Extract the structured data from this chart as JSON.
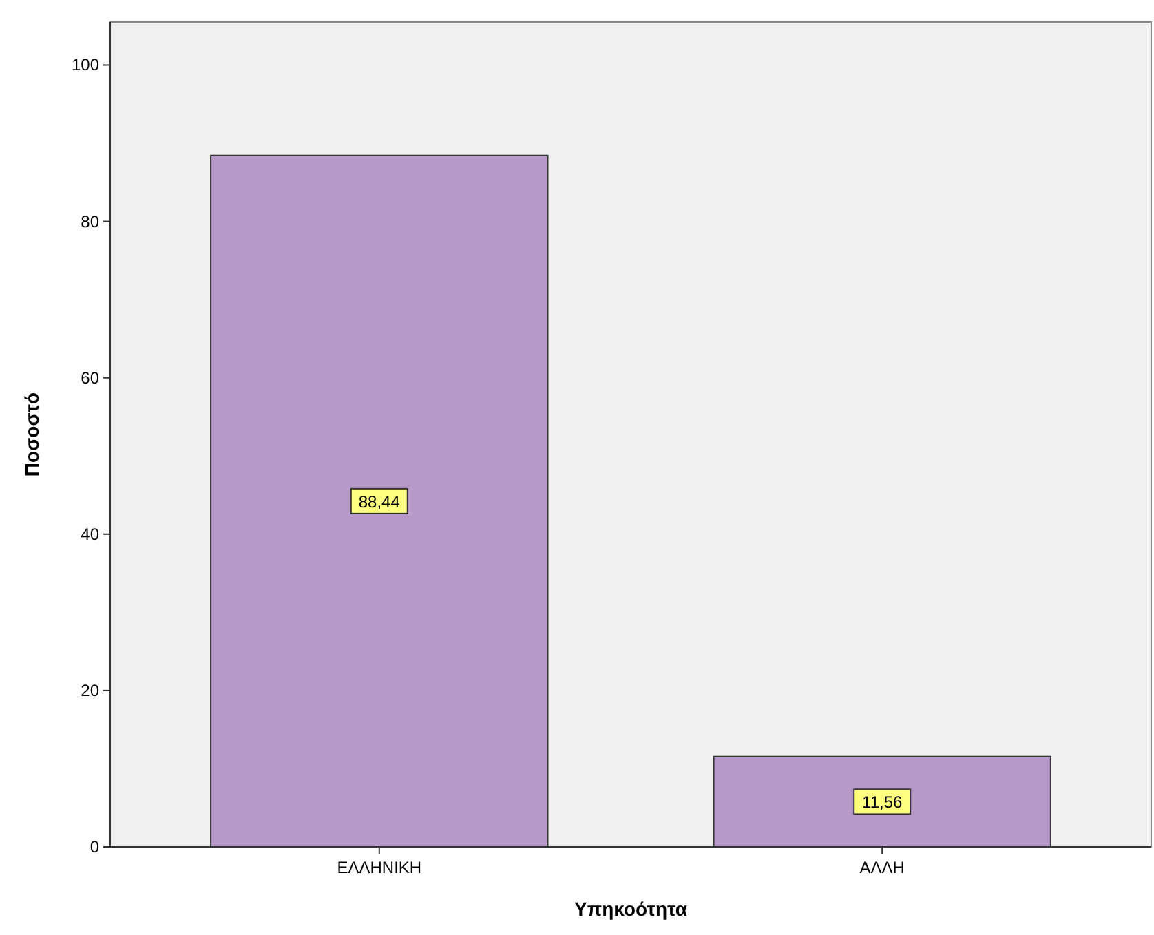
{
  "chart_data": {
    "type": "bar",
    "xlabel": "Υπηκοότητα",
    "ylabel": "Ποσοστό",
    "categories": [
      "ΕΛΛΗΝΙΚΗ",
      "ΑΛΛΗ"
    ],
    "values": [
      88.44,
      11.56
    ],
    "value_labels": [
      "88,44",
      "11,56"
    ],
    "color": "#b799c9",
    "ylim": [
      0,
      105.5
    ],
    "yticks": [
      0,
      20,
      40,
      60,
      80,
      100
    ]
  }
}
